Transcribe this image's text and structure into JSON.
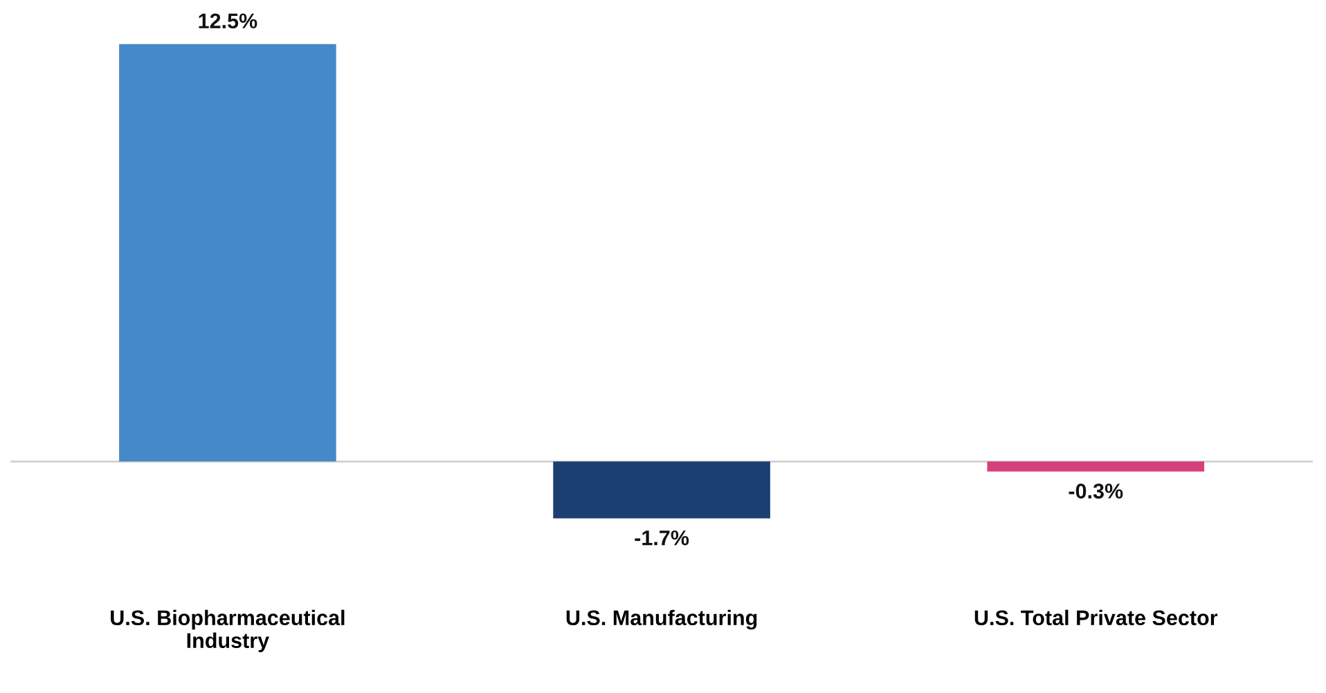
{
  "chart_data": {
    "type": "bar",
    "categories": [
      "U.S. Biopharmaceutical\nIndustry",
      "U.S. Manufacturing",
      "U.S. Total Private Sector"
    ],
    "values": [
      12.5,
      -1.7,
      -0.3
    ],
    "colors": [
      "#4589c8",
      "#1c3f72",
      "#d63f7c"
    ],
    "value_labels": [
      "12.5%",
      "-1.7%",
      "-0.3%"
    ],
    "grid": false,
    "legend": false
  }
}
